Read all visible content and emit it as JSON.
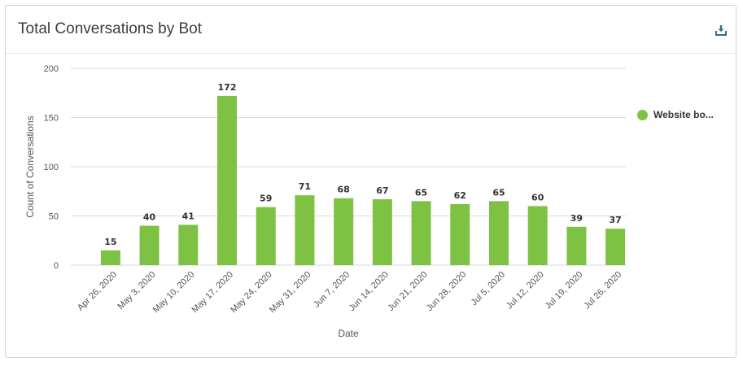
{
  "header": {
    "title": "Total Conversations by Bot",
    "download_icon": "download-icon"
  },
  "colors": {
    "bar": "#7dc242",
    "grid": "#d9d9d9",
    "axis_text": "#555555",
    "label_text": "#333333"
  },
  "legend": {
    "label": "Website bo..."
  },
  "chart_data": {
    "type": "bar",
    "title": "Total Conversations by Bot",
    "xlabel": "Date",
    "ylabel": "Count of Conversations",
    "ylim": [
      0,
      200
    ],
    "yticks": [
      0,
      50,
      100,
      150,
      200
    ],
    "grid": true,
    "legend_position": "right",
    "categories": [
      "Apr 26, 2020",
      "May 3, 2020",
      "May 10, 2020",
      "May 17, 2020",
      "May 24, 2020",
      "May 31, 2020",
      "Jun 7, 2020",
      "Jun 14, 2020",
      "Jun 21, 2020",
      "Jun 28, 2020",
      "Jul 5, 2020",
      "Jul 12, 2020",
      "Jul 19, 2020",
      "Jul 26, 2020"
    ],
    "series": [
      {
        "name": "Website bo...",
        "values": [
          15,
          40,
          41,
          172,
          59,
          71,
          68,
          67,
          65,
          62,
          65,
          60,
          39,
          37
        ]
      }
    ]
  }
}
